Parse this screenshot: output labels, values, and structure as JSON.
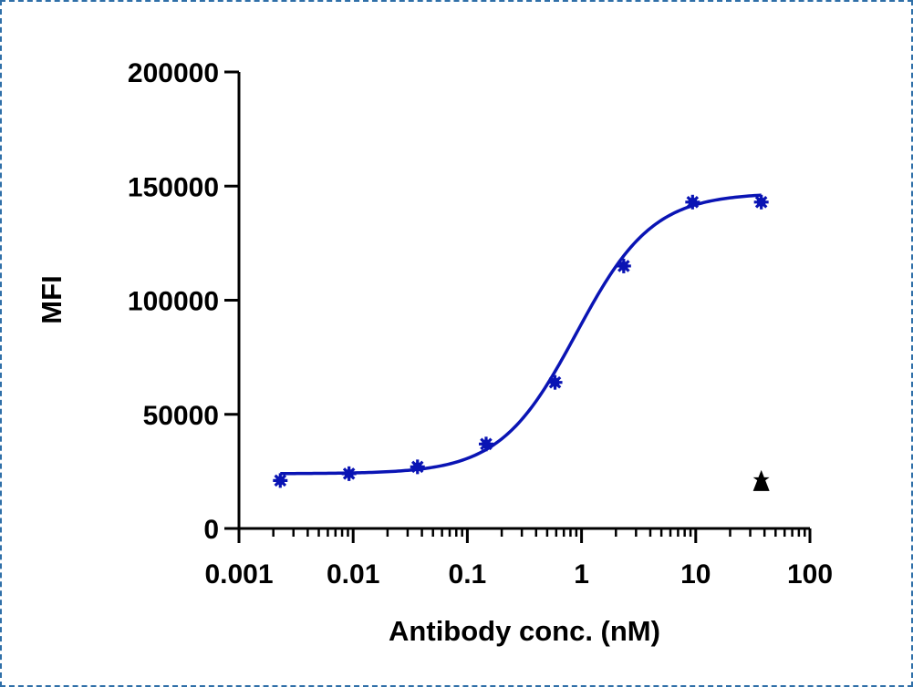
{
  "chart_data": {
    "type": "scatter",
    "title": "",
    "xlabel": "Antibody conc. (nM)",
    "ylabel": "MFI",
    "x_scale": "log",
    "xlim": [
      0.001,
      100
    ],
    "ylim": [
      0,
      200000
    ],
    "x_tick_labels": [
      "0.001",
      "0.01",
      "0.1",
      "1",
      "10",
      "100"
    ],
    "y_tick_labels": [
      "0",
      "50000",
      "100000",
      "150000",
      "200000"
    ],
    "grid": false,
    "legend": "none",
    "series": [
      {
        "marker": "asterisk",
        "color": "#0a14b4",
        "x": [
          0.0023,
          0.0092,
          0.0366,
          0.146,
          0.586,
          2.34,
          9.38,
          37.5
        ],
        "y": [
          21000,
          24000,
          27000,
          37000,
          64000,
          115000,
          143000,
          143000
        ],
        "fit": {
          "type": "4PL",
          "bottom": 24000,
          "top": 147000,
          "ec50": 0.9,
          "hill": 1.3
        }
      },
      {
        "marker": "triangle",
        "color": "#000000",
        "x": [
          37.5
        ],
        "y": [
          20000
        ]
      }
    ]
  }
}
